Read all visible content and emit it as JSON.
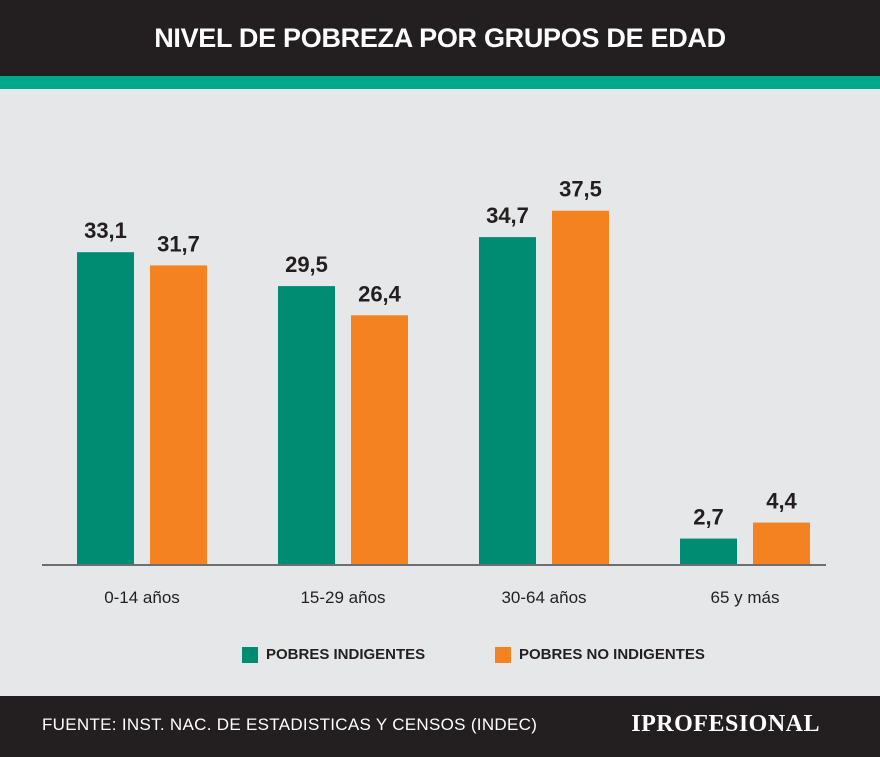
{
  "header": {
    "title": "NIVEL DE POBREZA POR GRUPOS DE EDAD"
  },
  "colors": {
    "accent": "#00a88c",
    "series_1": "#008b73",
    "series_2": "#f58220",
    "background": "#e6e7e8",
    "dark": "#231f20"
  },
  "chart_data": {
    "type": "bar",
    "title": "NIVEL DE POBREZA POR GRUPOS DE EDAD",
    "categories": [
      "0-14 años",
      "15-29 años",
      "30-64 años",
      "65 y más"
    ],
    "series": [
      {
        "name": "POBRES INDIGENTES",
        "values": [
          33.1,
          29.5,
          34.7,
          2.7
        ],
        "labels": [
          "33,1",
          "29,5",
          "34,7",
          "2,7"
        ]
      },
      {
        "name": "POBRES NO INDIGENTES",
        "values": [
          31.7,
          26.4,
          37.5,
          4.4
        ],
        "labels": [
          "31,7",
          "26,4",
          "37,5",
          "4,4"
        ]
      }
    ],
    "xlabel": "",
    "ylabel": "",
    "ylim": [
      0,
      41.4
    ],
    "grid": false,
    "legend": "bottom"
  },
  "footer": {
    "source": "FUENTE: INST. NAC. DE ESTADISTICAS Y CENSOS (INDEC)",
    "logo": "IPROFESIONAL"
  }
}
